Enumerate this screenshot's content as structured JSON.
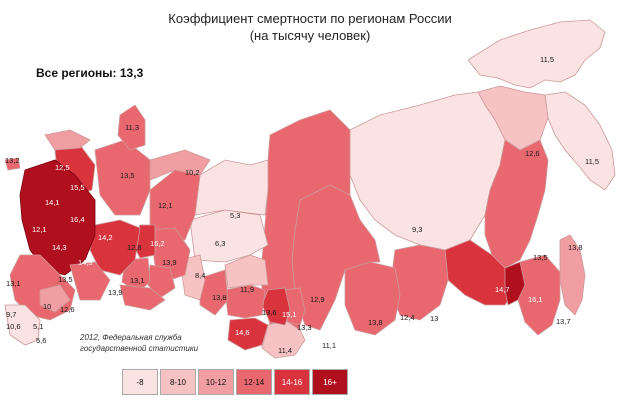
{
  "title": "Коэффициент смертности по регионам России",
  "subtitle": "(на тысячу человек)",
  "all_regions": "Все регионы: 13,3",
  "source_line1": "2012, Федеральная служба",
  "source_line2": "государственной статистики",
  "legend": [
    {
      "label": "-8",
      "color": "#fbe3e3"
    },
    {
      "label": "8-10",
      "color": "#f7c2c4"
    },
    {
      "label": "10-12",
      "color": "#f19ea2"
    },
    {
      "label": "12-14",
      "color": "#e9686f"
    },
    {
      "label": "14-16",
      "color": "#d9343e"
    },
    {
      "label": "16+",
      "color": "#b00f1e"
    }
  ],
  "region_labels": [
    "13,2",
    "11,3",
    "11,5",
    "11,5",
    "10,2",
    "12,1",
    "13,5",
    "12,6",
    "5,3",
    "6,3",
    "9,3",
    "13,8",
    "13,5",
    "14,7",
    "16,1",
    "13,7",
    "12,9",
    "13,8",
    "11,9",
    "13,6",
    "15,1",
    "14,6",
    "13,3",
    "11,4",
    "11,1",
    "13,8",
    "12,4",
    "13",
    "12,8",
    "13,9",
    "13,5",
    "13,1",
    "13,9",
    "8,4",
    "16,2",
    "13,1",
    "12,6",
    "10",
    "9,7",
    "10,6",
    "5,1",
    "5,6",
    "12,1",
    "14,3",
    "16,4",
    "14,1",
    "15,5",
    "12,5",
    "14,3",
    "14,2"
  ]
}
